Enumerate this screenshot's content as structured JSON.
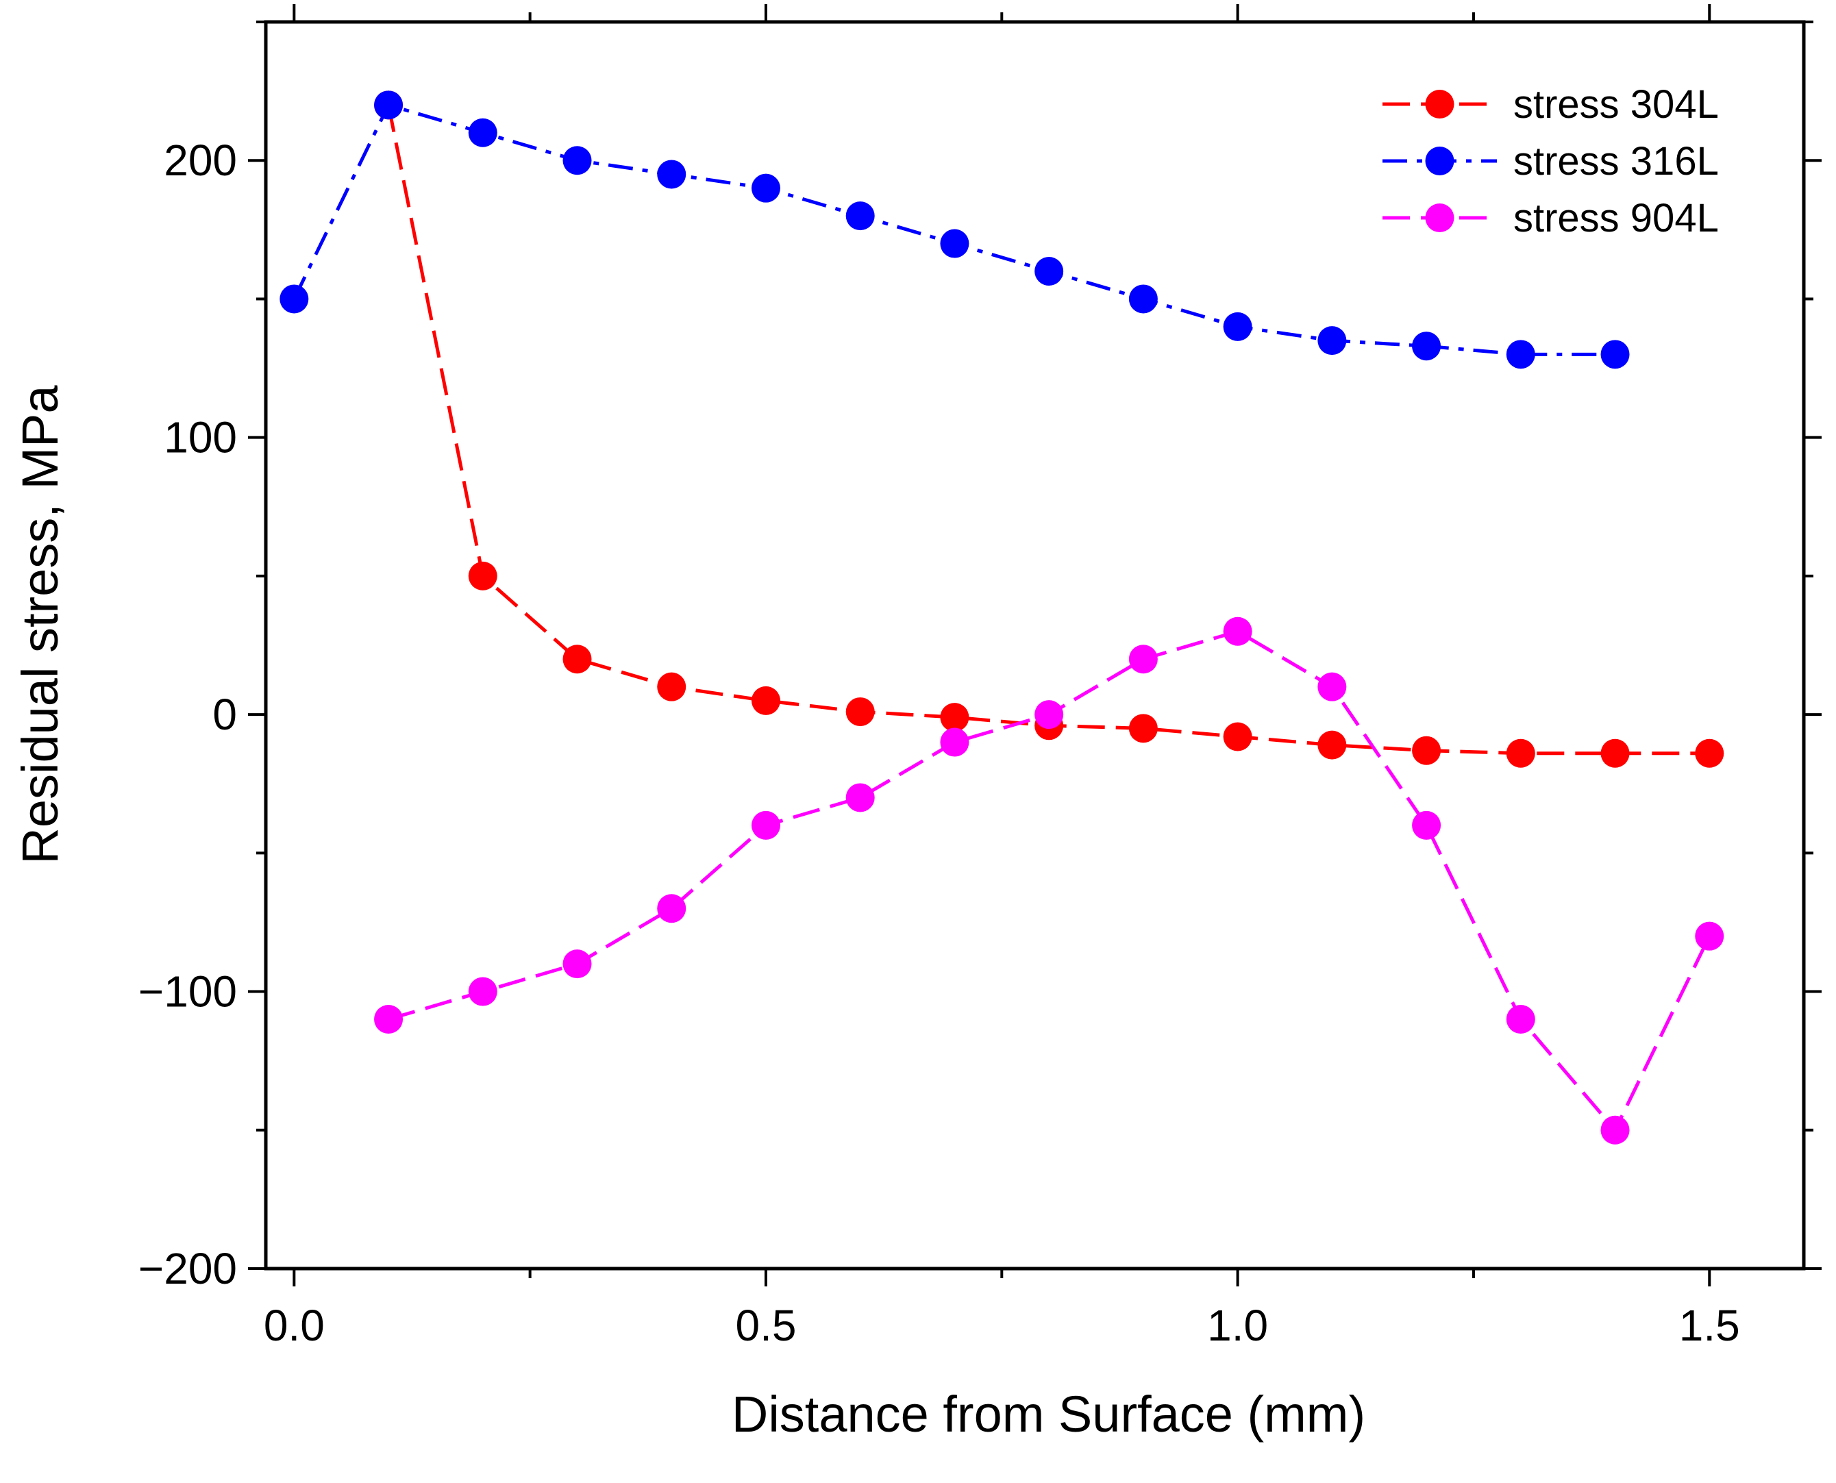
{
  "chart_data": {
    "type": "line",
    "xlabel": "Distance from Surface (mm)",
    "ylabel": "Residual stress, MPa",
    "xlim": [
      -0.03,
      1.6
    ],
    "ylim": [
      -200,
      250
    ],
    "xticks": [
      0.0,
      0.5,
      1.0,
      1.5
    ],
    "xtick_labels": [
      "0.0",
      "0.5",
      "1.0",
      "1.5"
    ],
    "yticks": [
      -200,
      -100,
      0,
      100,
      200
    ],
    "ytick_labels": [
      "−200",
      "−100",
      "0",
      "100",
      "200"
    ],
    "grid": false,
    "legend_position": "top-right",
    "series": [
      {
        "name": "stress 304L",
        "color": "#ff0000",
        "line_style": "dashed",
        "marker": "circle",
        "x": [
          0.1,
          0.2,
          0.3,
          0.4,
          0.5,
          0.6,
          0.7,
          0.8,
          0.9,
          1.0,
          1.1,
          1.2,
          1.3,
          1.4,
          1.5
        ],
        "y": [
          220,
          50,
          20,
          10,
          5,
          1,
          -1,
          -4,
          -5,
          -8,
          -11,
          -13,
          -14,
          -14,
          -14
        ]
      },
      {
        "name": "stress 316L",
        "color": "#0000ff",
        "line_style": "dash-dot",
        "marker": "circle",
        "x": [
          0.0,
          0.1,
          0.2,
          0.3,
          0.4,
          0.5,
          0.6,
          0.7,
          0.8,
          0.9,
          1.0,
          1.1,
          1.2,
          1.3,
          1.4
        ],
        "y": [
          150,
          220,
          210,
          200,
          195,
          190,
          180,
          170,
          160,
          150,
          140,
          135,
          133,
          130,
          130
        ]
      },
      {
        "name": "stress 904L",
        "color": "#ff00ff",
        "line_style": "dashed",
        "marker": "circle",
        "x": [
          0.1,
          0.2,
          0.3,
          0.4,
          0.5,
          0.6,
          0.7,
          0.8,
          0.9,
          1.0,
          1.1,
          1.2,
          1.3,
          1.4,
          1.5
        ],
        "y": [
          -110,
          -100,
          -90,
          -70,
          -40,
          -30,
          -10,
          0,
          20,
          30,
          10,
          -40,
          -110,
          -150,
          -80
        ]
      }
    ]
  }
}
